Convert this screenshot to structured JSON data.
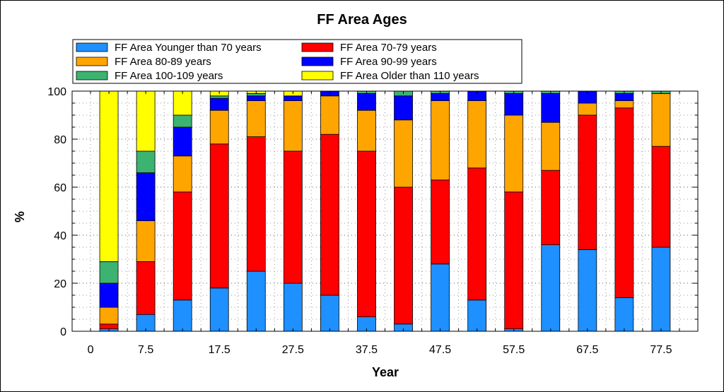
{
  "chart_data": {
    "type": "bar",
    "stacked": true,
    "title": "FF Area Ages",
    "xlabel": "Year",
    "ylabel": "%",
    "ylim": [
      0,
      100
    ],
    "yticks": [
      0,
      20,
      40,
      60,
      80,
      100
    ],
    "xlim": [
      -2.5,
      82.5
    ],
    "xticks": [
      "0",
      "7.5",
      "17.5",
      "27.5",
      "37.5",
      "47.5",
      "57.5",
      "67.5",
      "77.5"
    ],
    "x": [
      2.5,
      7.5,
      12.5,
      17.5,
      22.5,
      27.5,
      32.5,
      37.5,
      42.5,
      47.5,
      52.5,
      57.5,
      62.5,
      67.5,
      72.5,
      77.5
    ],
    "grid": true,
    "legend_position": "top",
    "series": [
      {
        "name": "FF Area Younger than 70 years",
        "color": "#1e90ff",
        "values": [
          1,
          7,
          13,
          18,
          25,
          20,
          15,
          6,
          3,
          28,
          13,
          1,
          36,
          34,
          14,
          35
        ]
      },
      {
        "name": "FF Area 70-79 years",
        "color": "#ff0000",
        "values": [
          2,
          22,
          45,
          60,
          56,
          55,
          67,
          69,
          57,
          35,
          55,
          57,
          31,
          56,
          79,
          42
        ]
      },
      {
        "name": "FF Area 80-89 years",
        "color": "#ffa500",
        "values": [
          7,
          17,
          15,
          14,
          15,
          21,
          16,
          17,
          28,
          33,
          28,
          32,
          20,
          5,
          3,
          22
        ]
      },
      {
        "name": "FF Area 90-99 years",
        "color": "#0000ff",
        "values": [
          10,
          20,
          12,
          5,
          2,
          2,
          2,
          7,
          10,
          3,
          4,
          9,
          12,
          5,
          3,
          0
        ]
      },
      {
        "name": "FF Area 100-109 years",
        "color": "#3cb371",
        "values": [
          9,
          9,
          5,
          1,
          1,
          0,
          0,
          1,
          2,
          1,
          0,
          1,
          1,
          0,
          1,
          1
        ]
      },
      {
        "name": "FF Area Older than 110 years",
        "color": "#ffff00",
        "values": [
          71,
          25,
          10,
          2,
          1,
          2,
          0,
          0,
          0,
          0,
          0,
          0,
          0,
          0,
          0,
          0
        ]
      }
    ]
  }
}
